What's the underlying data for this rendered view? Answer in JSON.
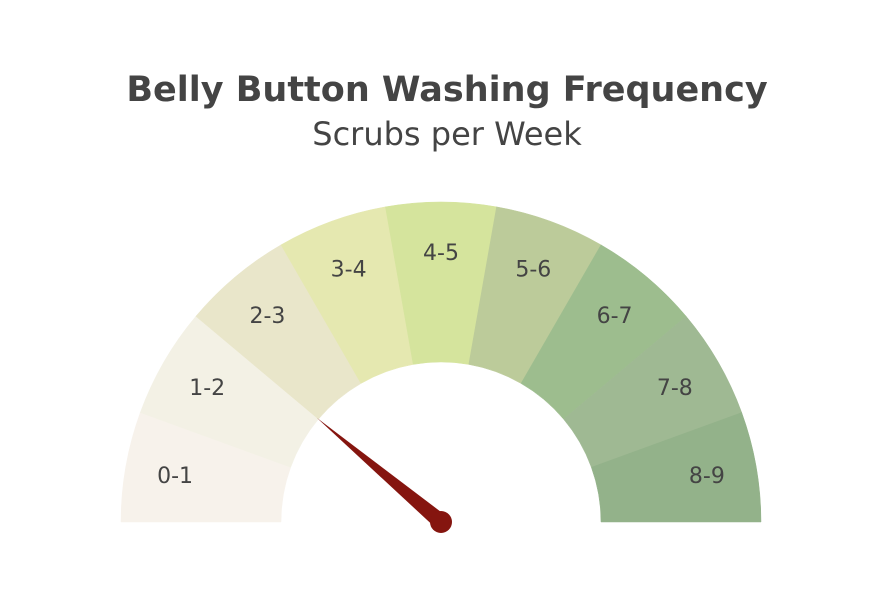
{
  "chart_data": {
    "type": "gauge",
    "title": "Belly Button Washing Frequency",
    "subtitle": "Scrubs per Week",
    "range": [
      0,
      9
    ],
    "value": 2,
    "segments": [
      {
        "label": "0-1",
        "color": "#f7f2eb"
      },
      {
        "label": "1-2",
        "color": "#f3f1e5"
      },
      {
        "label": "2-3",
        "color": "#e9e6ca"
      },
      {
        "label": "3-4",
        "color": "#e5e8b0"
      },
      {
        "label": "4-5",
        "color": "#d5e49d"
      },
      {
        "label": "5-6",
        "color": "#bccb9a"
      },
      {
        "label": "6-7",
        "color": "#9dbd8e"
      },
      {
        "label": "7-8",
        "color": "#9fb993"
      },
      {
        "label": "8-9",
        "color": "#93b28a"
      }
    ],
    "needle_color": "#85150f"
  }
}
